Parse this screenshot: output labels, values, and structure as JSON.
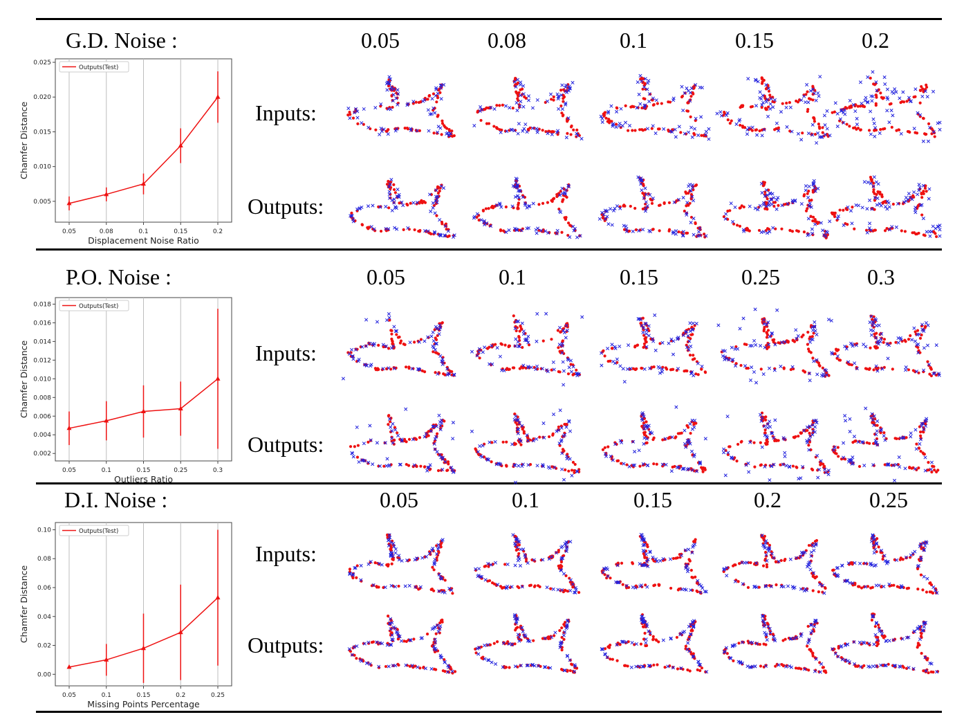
{
  "colors": {
    "input_points": "#2222dd",
    "output_points": "#ee1111",
    "line": "#ee1111"
  },
  "row_labels": {
    "inputs": "Inputs:",
    "outputs": "Outputs:"
  },
  "panels": [
    {
      "noise_label": "G.D. Noise :",
      "levels": [
        "0.05",
        "0.08",
        "0.1",
        "0.15",
        "0.2"
      ]
    },
    {
      "noise_label": "P.O. Noise :",
      "levels": [
        "0.05",
        "0.1",
        "0.15",
        "0.25",
        "0.3"
      ]
    },
    {
      "noise_label": "D.I. Noise  :",
      "levels": [
        "0.05",
        "0.1",
        "0.15",
        "0.2",
        "0.25"
      ]
    }
  ],
  "chart_data": [
    {
      "type": "line",
      "title": "",
      "xlabel": "Displacement Noise Ratio",
      "ylabel": "Chamfer Distance",
      "categories": [
        "0.05",
        "0.08",
        "0.1",
        "0.15",
        "0.2"
      ],
      "series": [
        {
          "name": "Outputs(Test)",
          "values": [
            0.0047,
            0.006,
            0.0075,
            0.013,
            0.02
          ],
          "errors": [
            0.001,
            0.001,
            0.0015,
            0.0025,
            0.0037
          ]
        }
      ],
      "ylim": [
        0.002,
        0.0255
      ],
      "yticks": [
        0.005,
        0.01,
        0.015,
        0.02,
        0.025
      ],
      "ytick_labels": [
        "0.005",
        "0.010",
        "0.015",
        "0.020",
        "0.025"
      ],
      "grid": true,
      "legend": "top-left"
    },
    {
      "type": "line",
      "title": "",
      "xlabel": "Outliers Ratio",
      "ylabel": "Chamfer Distance",
      "categories": [
        "0.05",
        "0.1",
        "0.15",
        "0.25",
        "0.3"
      ],
      "series": [
        {
          "name": "Outputs(Test)",
          "values": [
            0.0047,
            0.0055,
            0.0065,
            0.0068,
            0.01
          ],
          "errors": [
            0.0018,
            0.0021,
            0.0028,
            0.0029,
            0.0075
          ]
        }
      ],
      "ylim": [
        0.0012,
        0.0187
      ],
      "yticks": [
        0.002,
        0.004,
        0.006,
        0.008,
        0.01,
        0.012,
        0.014,
        0.016,
        0.018
      ],
      "ytick_labels": [
        "0.002",
        "0.004",
        "0.006",
        "0.008",
        "0.010",
        "0.012",
        "0.014",
        "0.016",
        "0.018"
      ],
      "grid": true,
      "legend": "top-left"
    },
    {
      "type": "line",
      "title": "",
      "xlabel": "Missing Points Percentage",
      "ylabel": "Chamfer Distance",
      "categories": [
        "0.05",
        "0.1",
        "0.15",
        "0.2",
        "0.25"
      ],
      "series": [
        {
          "name": "Outputs(Test)",
          "values": [
            0.005,
            0.01,
            0.018,
            0.029,
            0.053
          ],
          "errors": [
            0.001,
            0.011,
            0.024,
            0.033,
            0.047
          ]
        }
      ],
      "ylim": [
        -0.008,
        0.105
      ],
      "yticks": [
        0.0,
        0.02,
        0.04,
        0.06,
        0.08,
        0.1
      ],
      "ytick_labels": [
        "0.00",
        "0.02",
        "0.04",
        "0.06",
        "0.08",
        "0.10"
      ],
      "grid": true,
      "legend": "top-left"
    }
  ]
}
